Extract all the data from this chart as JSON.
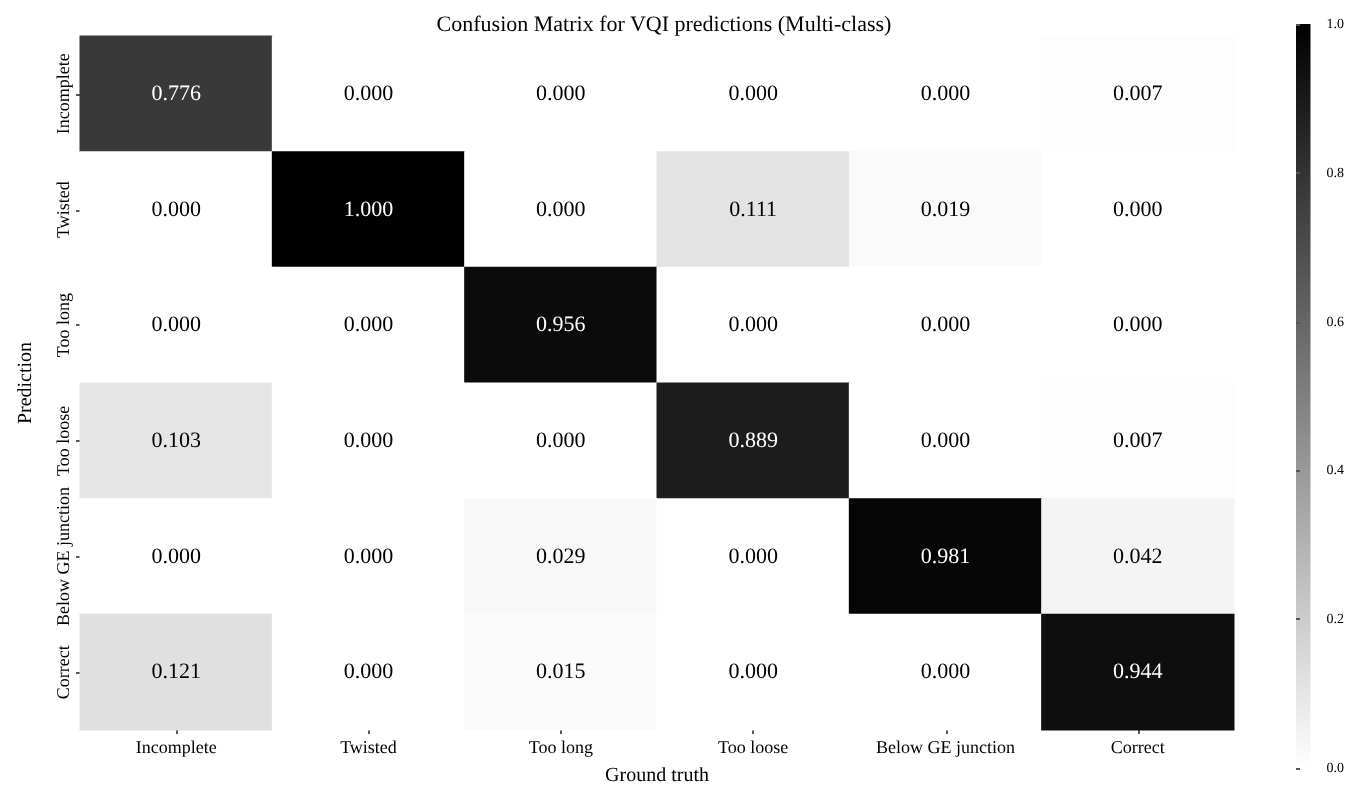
{
  "chart_data": {
    "type": "heatmap",
    "title": "Confusion Matrix for VQI predictions (Multi-class)",
    "xlabel": "Ground truth",
    "ylabel": "Prediction",
    "categories": [
      "Incomplete",
      "Twisted",
      "Too long",
      "Too loose",
      "Below GE junction",
      "Correct"
    ],
    "y_categories": [
      "Incomplete",
      "Twisted",
      "Too long",
      "Too loose",
      "Below GE junction",
      "Correct"
    ],
    "cells": [
      [
        0.776,
        0,
        0,
        0,
        0,
        0.007
      ],
      [
        0,
        1,
        0,
        0.111,
        0.019,
        0
      ],
      [
        0,
        0,
        0.956,
        0,
        0,
        0
      ],
      [
        0.103,
        0,
        0,
        0.889,
        0,
        0.007
      ],
      [
        0,
        0,
        0.029,
        0,
        0.981,
        0.042
      ],
      [
        0.121,
        0,
        0.015,
        0,
        0,
        0.944
      ]
    ],
    "cell_labels": [
      [
        "0.776",
        "0.000",
        "0.000",
        "0.000",
        "0.000",
        "0.007"
      ],
      [
        "0.000",
        "1.000",
        "0.000",
        "0.111",
        "0.019",
        "0.000"
      ],
      [
        "0.000",
        "0.000",
        "0.956",
        "0.000",
        "0.000",
        "0.000"
      ],
      [
        "0.103",
        "0.000",
        "0.000",
        "0.889",
        "0.000",
        "0.007"
      ],
      [
        "0.000",
        "0.000",
        "0.029",
        "0.000",
        "0.981",
        "0.042"
      ],
      [
        "0.121",
        "0.000",
        "0.015",
        "0.000",
        "0.000",
        "0.944"
      ]
    ],
    "clim": [
      0,
      1
    ],
    "cticks": [
      {
        "value": 0,
        "label": "0.0"
      },
      {
        "value": 0.2,
        "label": "0.2"
      },
      {
        "value": 0.4,
        "label": "0.4"
      },
      {
        "value": 0.6,
        "label": "0.6"
      },
      {
        "value": 0.8,
        "label": "0.8"
      },
      {
        "value": 1,
        "label": "1.0"
      }
    ]
  }
}
